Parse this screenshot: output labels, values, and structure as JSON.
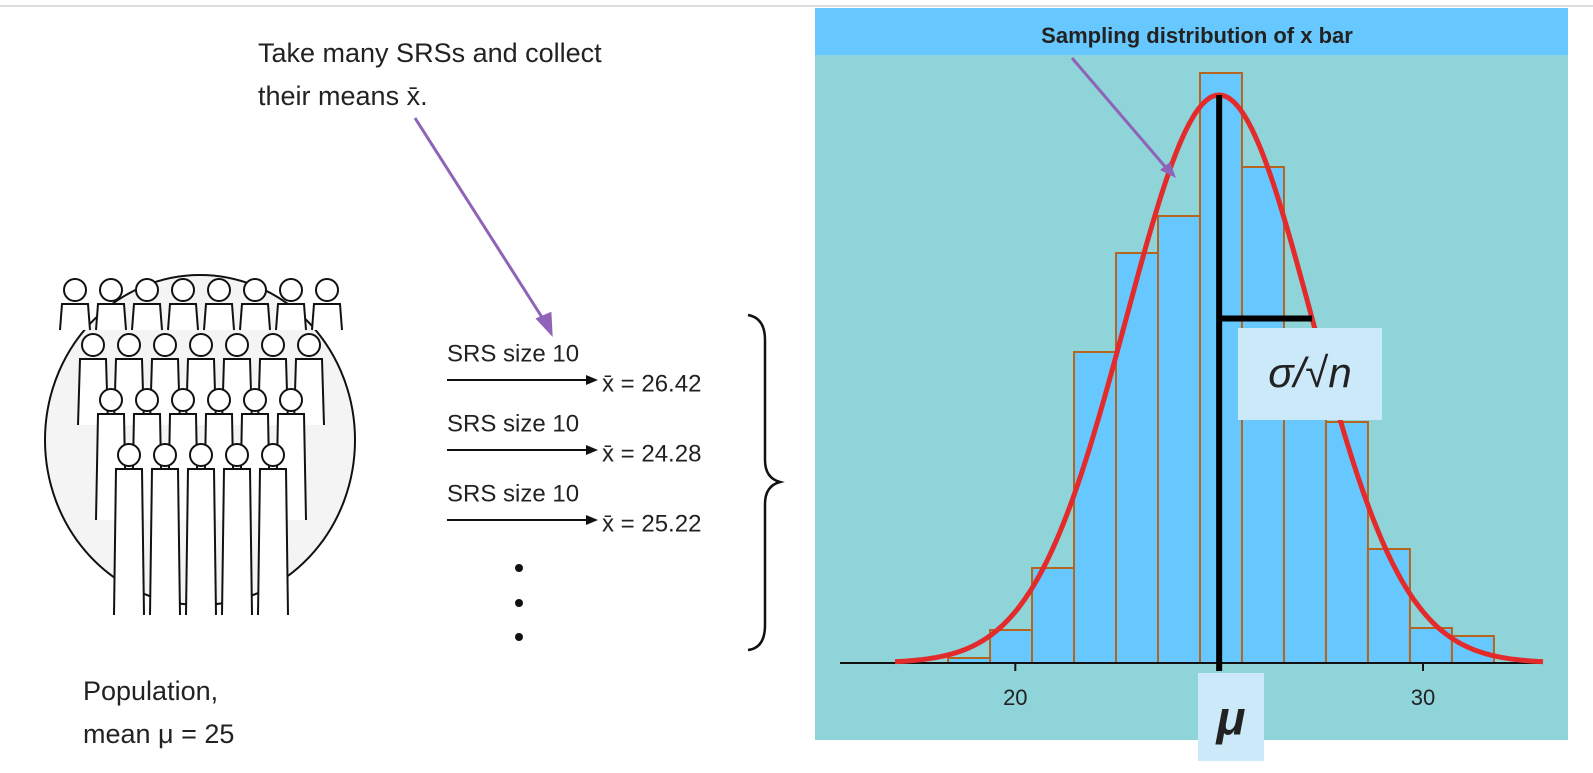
{
  "diagram": {
    "caption_lines": [
      "Take many SRSs and collect",
      "their means x̄."
    ],
    "samples": [
      {
        "label": "SRS size 10",
        "mean": "x̄ = 26.42"
      },
      {
        "label": "SRS size 10",
        "mean": "x̄ = 24.28"
      },
      {
        "label": "SRS size 10",
        "mean": "x̄ = 25.22"
      }
    ],
    "population_lines": [
      "Population,",
      "mean μ = 25"
    ],
    "sigma_label": "σ/√n",
    "mu_label": "μ"
  },
  "chart_data": {
    "type": "histogram",
    "title": "Sampling distribution of x bar",
    "bins": [
      18.35,
      19.38,
      20.41,
      21.44,
      22.47,
      23.5,
      24.53,
      25.56,
      26.59,
      27.62,
      28.65,
      29.68,
      30.71,
      31.74
    ],
    "values": [
      5,
      33,
      95,
      311,
      410,
      447,
      590,
      496,
      323,
      241,
      114,
      35,
      27
    ],
    "color": "#66c8ff",
    "edge_color": "#b5651d",
    "xlim": [
      15.7,
      32.87
    ],
    "xticks": [
      20,
      30
    ],
    "curve": {
      "mean": 25,
      "sd": 2.28,
      "peak": 568,
      "color": "#e32b2b"
    }
  }
}
